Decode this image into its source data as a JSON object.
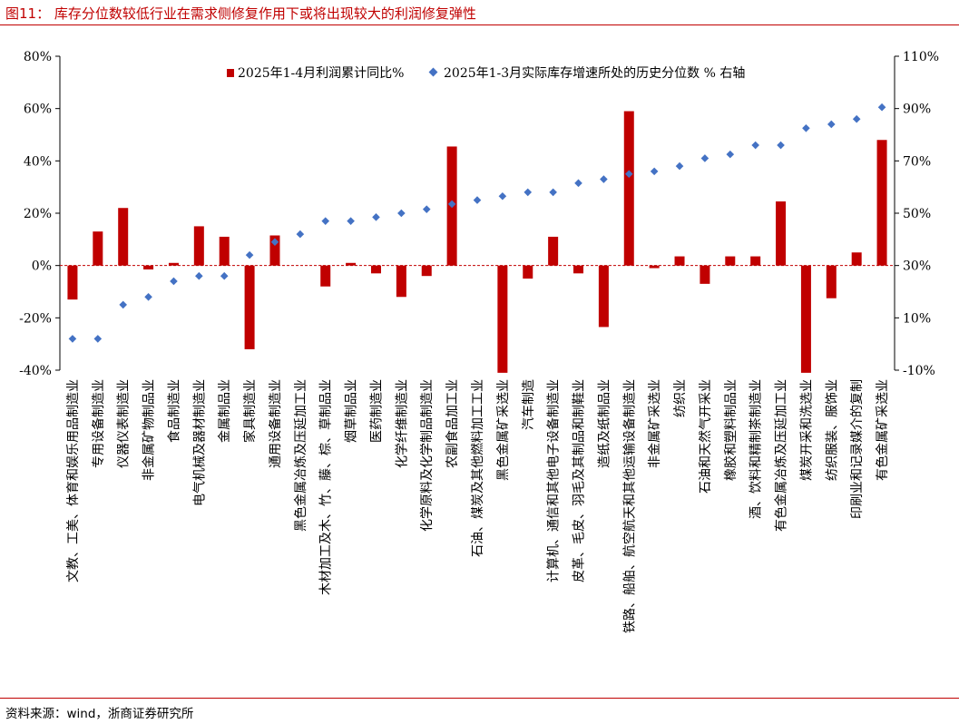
{
  "figure": {
    "title": "图11：  库存分位数较低行业在需求侧修复作用下或将出现较大的利润修复弹性",
    "source": "资料来源：wind，浙商证券研究所"
  },
  "colors": {
    "bar": "#c00000",
    "marker": "#4472c4",
    "rule": "#c00000"
  },
  "chart_data": {
    "type": "bar",
    "title": "图11：  库存分位数较低行业在需求侧修复作用下或将出现较大的利润修复弹性",
    "legend_position": "top",
    "categories": [
      "文教、工美、体育和娱乐用品制造业",
      "专用设备制造业",
      "仪器仪表制造业",
      "非金属矿物制品业",
      "食品制造业",
      "电气机械及器材制造业",
      "金属制品业",
      "家具制造业",
      "通用设备制造业",
      "黑色金属冶炼及压延加工业",
      "木材加工及木、竹、藤、棕、草制品业",
      "烟草制品业",
      "医药制造业",
      "化学纤维制造业",
      "化学原料及化学制品制造业",
      "农副食品加工业",
      "石油、煤炭及其他燃料加工工业",
      "黑色金属矿采选业",
      "汽车制造",
      "计算机、通信和其他电子设备制造业",
      "皮革、毛皮、羽毛及其制品和制鞋业",
      "造纸及纸制品业",
      "铁路、船舶、航空航天和其他运输设备制造业",
      "非金属矿采选业",
      "纺织业",
      "石油和天然气开采业",
      "橡胶和塑料制品业",
      "酒、饮料和精制茶制造业",
      "有色金属冶炼及压延加工业",
      "煤炭开采和洗选业",
      "纺织服装、服饰业",
      "印刷业和记录媒介的复制",
      "有色金属矿采选业"
    ],
    "series": [
      {
        "name": "2025年1-4月利润累计同比%",
        "type": "bar",
        "axis": "left",
        "values": [
          -13,
          13,
          22,
          -1.5,
          1,
          15,
          11,
          -32,
          11.5,
          0,
          -8,
          1,
          -3,
          -12,
          -4,
          45.5,
          0,
          -41,
          -5,
          11,
          -3,
          -23.5,
          59,
          -1,
          3.5,
          -7,
          3.5,
          3.5,
          24.5,
          -41,
          -12.5,
          5,
          48
        ]
      },
      {
        "name": "2025年1-3月实际库存增速所处的历史分位数 % 右轴",
        "type": "scatter",
        "axis": "right",
        "values": [
          2,
          2,
          15,
          18,
          24,
          26,
          26,
          34,
          39,
          42,
          47,
          47,
          48.5,
          50,
          51.5,
          53.5,
          55,
          56.5,
          58,
          58,
          61.5,
          63,
          65,
          66,
          68,
          71,
          72.5,
          76,
          76,
          82.5,
          84,
          86,
          90.5
        ]
      }
    ],
    "y_left": {
      "ylim": [
        -40,
        80
      ],
      "ticks": [
        "80%",
        "60%",
        "40%",
        "20%",
        "0%",
        "-20%",
        "-40%"
      ]
    },
    "y_right": {
      "ylim": [
        -10,
        110
      ],
      "ticks": [
        "110%",
        "90%",
        "70%",
        "50%",
        "30%",
        "10%",
        "-10%"
      ]
    },
    "xlabel": "",
    "ylabel": "",
    "grid": false
  }
}
